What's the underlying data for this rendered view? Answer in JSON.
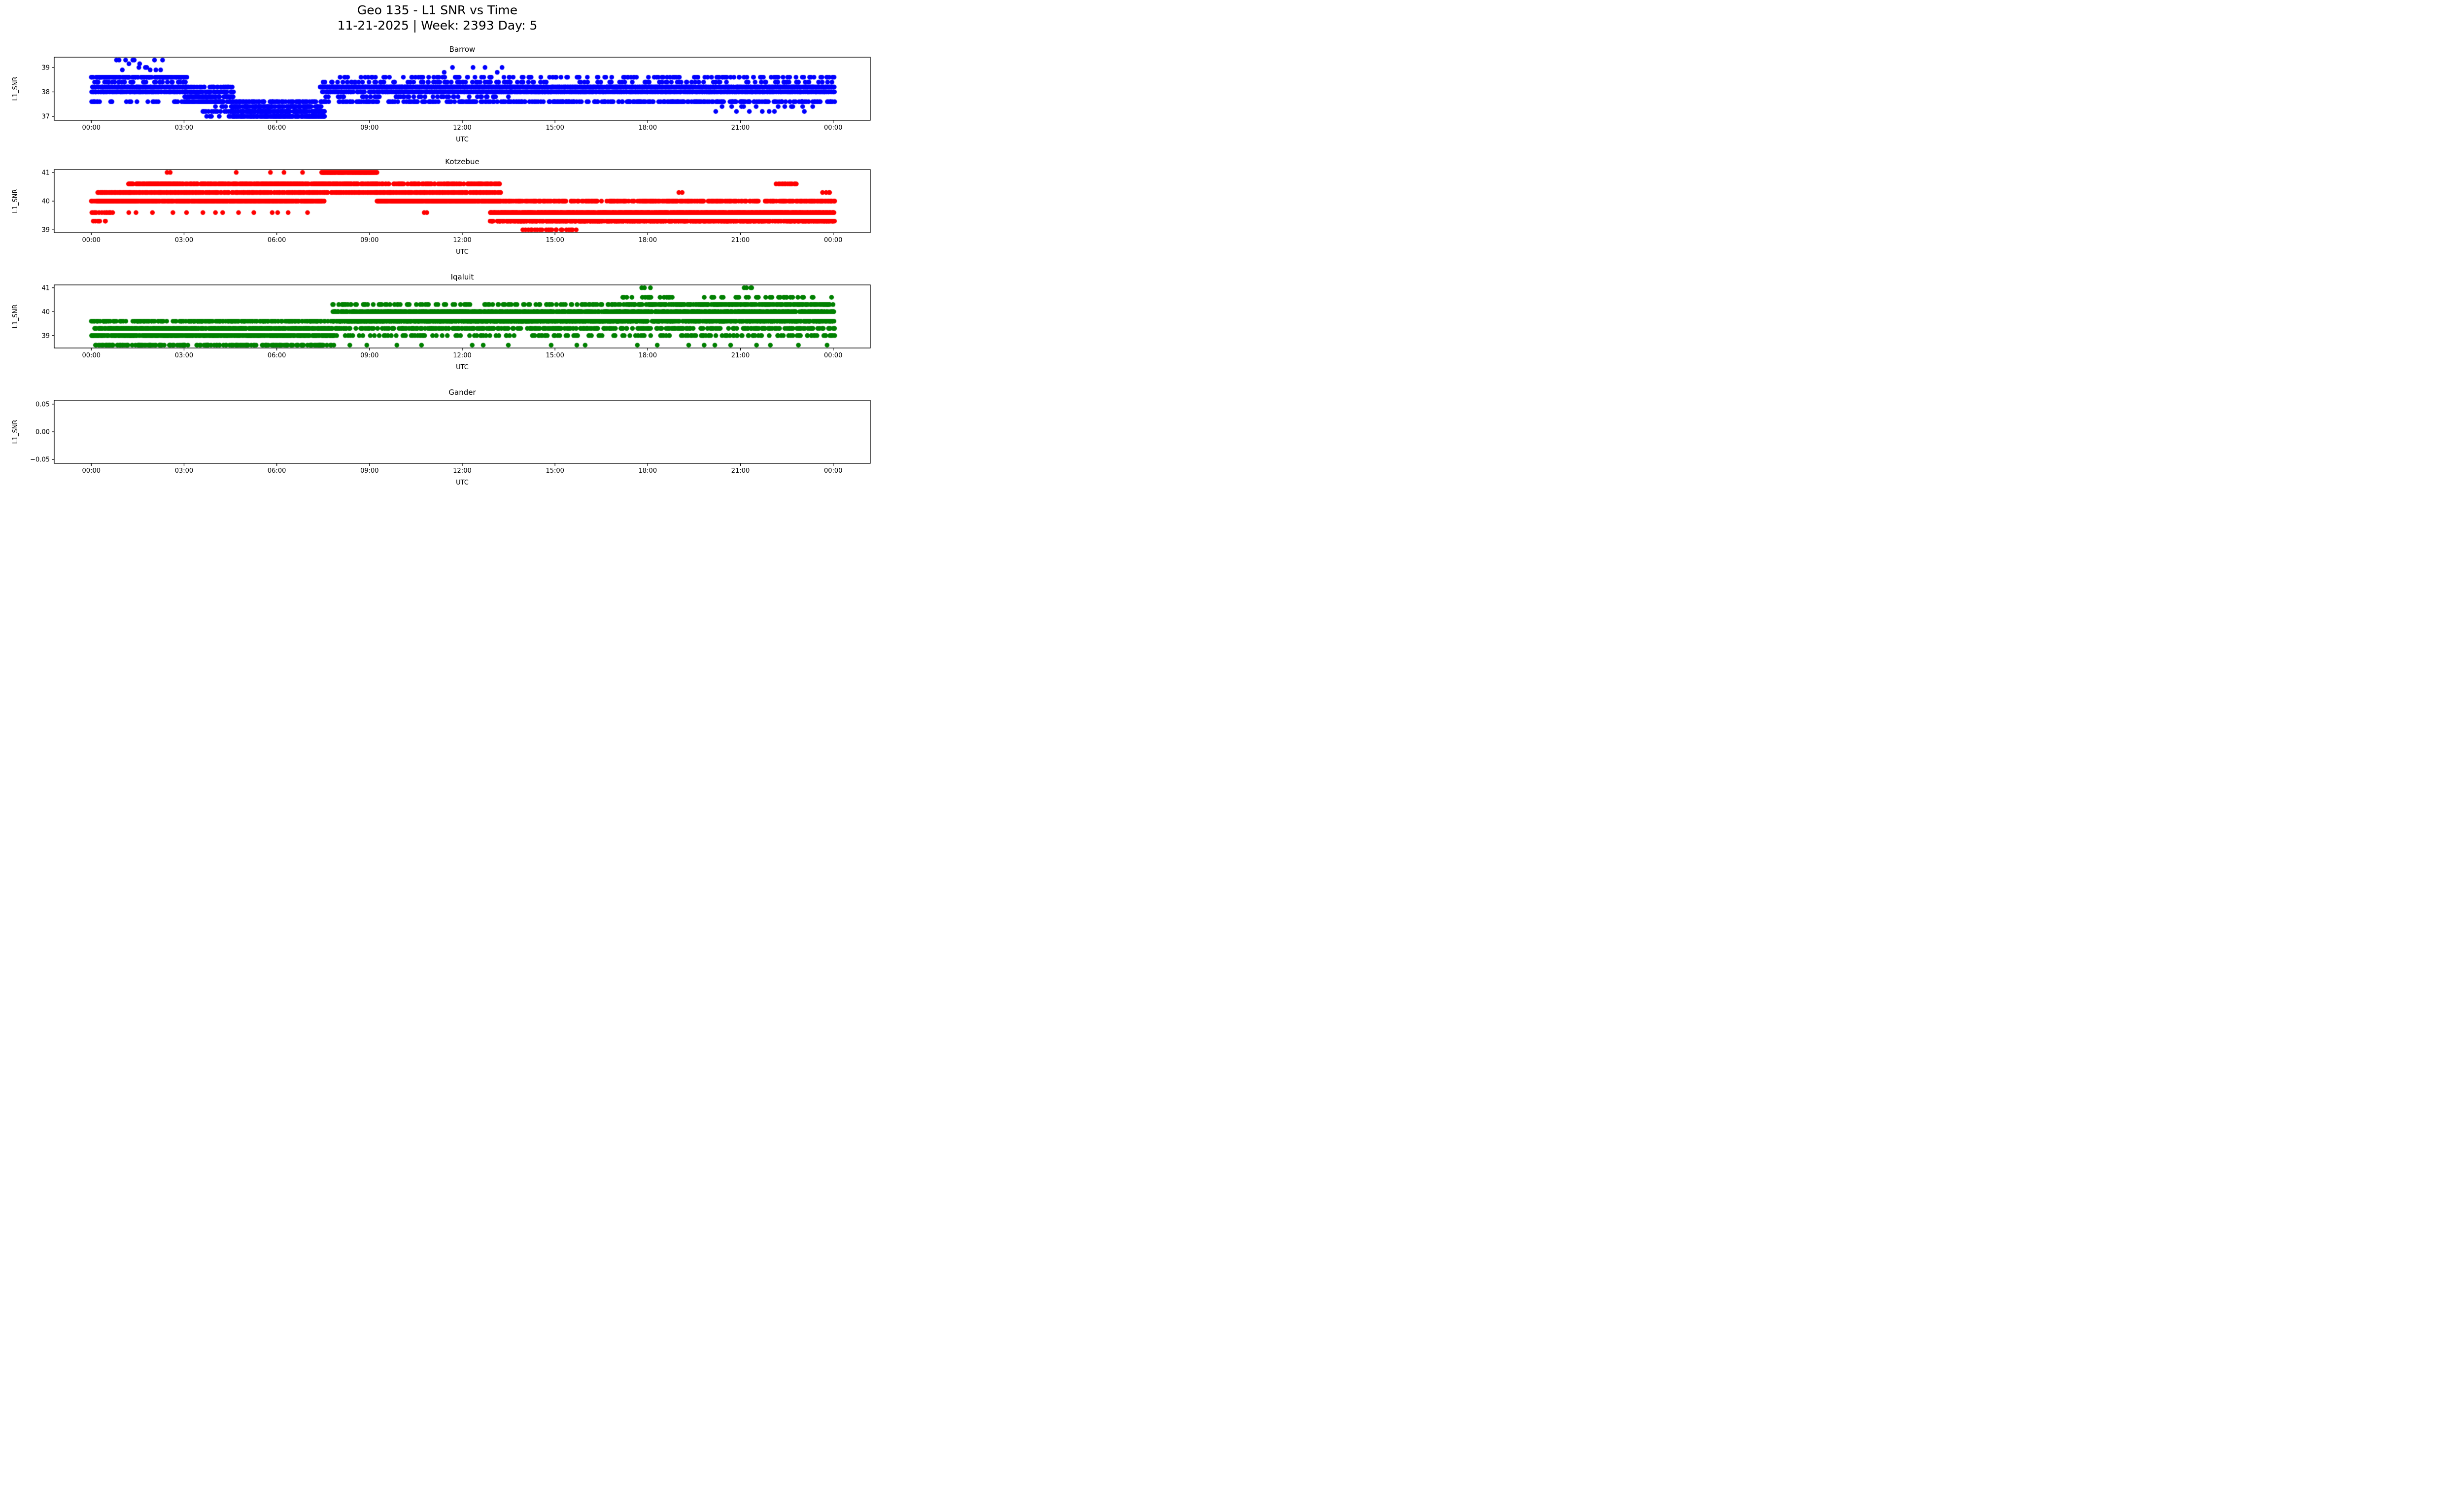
{
  "figure": {
    "title_line1": "Geo 135 - L1 SNR vs Time",
    "title_line2": "11-21-2025 | Week: 2393 Day: 5"
  },
  "chart_data": [
    {
      "type": "scatter",
      "id": "barrow",
      "title": "Barrow",
      "xlabel": "UTC",
      "ylabel": "L1_SNR",
      "color": "#0000ff",
      "x_tick_labels": [
        "00:00",
        "03:00",
        "06:00",
        "09:00",
        "12:00",
        "15:00",
        "18:00",
        "21:00",
        "00:00"
      ],
      "x_tick_hours": [
        0,
        3,
        6,
        9,
        12,
        15,
        18,
        21,
        24
      ],
      "y_tick_labels": [
        "37",
        "38",
        "39"
      ],
      "y_tick_values": [
        37,
        38,
        39
      ],
      "xlim": [
        -1.2,
        25.2
      ],
      "ylim": [
        36.84,
        39.42
      ],
      "legend": "none",
      "grid": false,
      "segments": [
        {
          "t0": 0.0,
          "t1": 3.1,
          "n": 560,
          "levels": [
            [
              38.0,
              32
            ],
            [
              38.2,
              32
            ],
            [
              38.4,
              6
            ],
            [
              38.6,
              26
            ],
            [
              37.6,
              4
            ]
          ]
        },
        {
          "t0": 0.75,
          "t1": 2.35,
          "n": 16,
          "levels": [
            [
              38.9,
              3
            ],
            [
              39.0,
              4
            ],
            [
              39.15,
              3
            ],
            [
              39.3,
              6
            ]
          ]
        },
        {
          "t0": 3.0,
          "t1": 4.6,
          "n": 240,
          "levels": [
            [
              37.6,
              35
            ],
            [
              37.8,
              30
            ],
            [
              38.0,
              18
            ],
            [
              38.2,
              17
            ]
          ]
        },
        {
          "t0": 3.6,
          "t1": 4.7,
          "n": 26,
          "levels": [
            [
              37.0,
              25
            ],
            [
              37.2,
              45
            ],
            [
              37.4,
              30
            ]
          ]
        },
        {
          "t0": 4.5,
          "t1": 7.55,
          "n": 520,
          "levels": [
            [
              37.0,
              32
            ],
            [
              37.2,
              30
            ],
            [
              37.4,
              26
            ],
            [
              37.6,
              12
            ]
          ]
        },
        {
          "t0": 7.4,
          "t1": 13.6,
          "n": 1050,
          "levels": [
            [
              37.6,
              10
            ],
            [
              37.8,
              4
            ],
            [
              38.0,
              28
            ],
            [
              38.2,
              48
            ],
            [
              38.4,
              5
            ],
            [
              38.6,
              5
            ]
          ]
        },
        {
          "t0": 11.4,
          "t1": 13.3,
          "n": 12,
          "levels": [
            [
              38.6,
              4
            ],
            [
              38.8,
              4
            ],
            [
              39.0,
              4
            ]
          ]
        },
        {
          "t0": 13.5,
          "t1": 24.05,
          "n": 1750,
          "levels": [
            [
              37.6,
              13
            ],
            [
              38.0,
              37
            ],
            [
              38.2,
              39
            ],
            [
              38.4,
              5
            ],
            [
              38.6,
              6
            ]
          ]
        },
        {
          "t0": 20.2,
          "t1": 23.4,
          "n": 18,
          "levels": [
            [
              37.2,
              8
            ],
            [
              37.4,
              10
            ]
          ]
        }
      ]
    },
    {
      "type": "scatter",
      "id": "kotzebue",
      "title": "Kotzebue",
      "xlabel": "UTC",
      "ylabel": "L1_SNR",
      "color": "#ff0000",
      "x_tick_labels": [
        "00:00",
        "03:00",
        "06:00",
        "09:00",
        "12:00",
        "15:00",
        "18:00",
        "21:00",
        "00:00"
      ],
      "x_tick_hours": [
        0,
        3,
        6,
        9,
        12,
        15,
        18,
        21,
        24
      ],
      "y_tick_labels": [
        "39",
        "40",
        "41"
      ],
      "y_tick_values": [
        39,
        40,
        41
      ],
      "xlim": [
        -1.2,
        25.2
      ],
      "ylim": [
        38.9,
        41.1
      ],
      "legend": "none",
      "grid": false,
      "segments": [
        {
          "t0": 0.0,
          "t1": 0.7,
          "n": 45,
          "levels": [
            [
              39.3,
              15
            ],
            [
              39.6,
              35
            ],
            [
              40.0,
              50
            ]
          ]
        },
        {
          "t0": 0.2,
          "t1": 1.3,
          "n": 170,
          "levels": [
            [
              40.0,
              55
            ],
            [
              40.3,
              45
            ]
          ]
        },
        {
          "t0": 1.2,
          "t1": 7.55,
          "n": 1020,
          "levels": [
            [
              40.0,
              42
            ],
            [
              40.3,
              28
            ],
            [
              40.6,
              30
            ]
          ]
        },
        {
          "t0": 1.0,
          "t1": 7.2,
          "n": 14,
          "levels": [
            [
              39.6,
              1
            ]
          ]
        },
        {
          "t0": 2.4,
          "t1": 2.6,
          "n": 2,
          "levels": [
            [
              41.0,
              1
            ]
          ]
        },
        {
          "t0": 4.6,
          "t1": 7.0,
          "n": 4,
          "levels": [
            [
              41.0,
              1
            ]
          ]
        },
        {
          "t0": 7.45,
          "t1": 9.25,
          "n": 340,
          "levels": [
            [
              41.0,
              55
            ],
            [
              40.6,
              27
            ],
            [
              40.3,
              18
            ]
          ]
        },
        {
          "t0": 9.2,
          "t1": 13.25,
          "n": 640,
          "levels": [
            [
              40.0,
              48
            ],
            [
              40.3,
              34
            ],
            [
              40.6,
              18
            ]
          ]
        },
        {
          "t0": 10.7,
          "t1": 10.95,
          "n": 2,
          "levels": [
            [
              39.6,
              1
            ]
          ]
        },
        {
          "t0": 12.9,
          "t1": 24.05,
          "n": 1850,
          "levels": [
            [
              39.3,
              33
            ],
            [
              39.6,
              49
            ],
            [
              40.0,
              18
            ]
          ]
        },
        {
          "t0": 13.9,
          "t1": 15.7,
          "n": 22,
          "levels": [
            [
              39.0,
              1
            ]
          ]
        },
        {
          "t0": 18.95,
          "t1": 19.15,
          "n": 2,
          "levels": [
            [
              40.3,
              1
            ]
          ]
        },
        {
          "t0": 22.15,
          "t1": 22.85,
          "n": 14,
          "levels": [
            [
              40.6,
              1
            ]
          ]
        },
        {
          "t0": 23.65,
          "t1": 23.95,
          "n": 4,
          "levels": [
            [
              40.3,
              1
            ]
          ]
        }
      ]
    },
    {
      "type": "scatter",
      "id": "iqaluit",
      "title": "Iqaluit",
      "xlabel": "UTC",
      "ylabel": "L1_SNR",
      "color": "#008000",
      "x_tick_labels": [
        "00:00",
        "03:00",
        "06:00",
        "09:00",
        "12:00",
        "15:00",
        "18:00",
        "21:00",
        "00:00"
      ],
      "x_tick_hours": [
        0,
        3,
        6,
        9,
        12,
        15,
        18,
        21,
        24
      ],
      "y_tick_labels": [
        "39",
        "40",
        "41"
      ],
      "y_tick_values": [
        39,
        40,
        41
      ],
      "xlim": [
        -1.2,
        25.2
      ],
      "ylim": [
        38.48,
        41.12
      ],
      "legend": "none",
      "grid": false,
      "segments": [
        {
          "t0": 0.0,
          "t1": 7.85,
          "n": 1250,
          "levels": [
            [
              38.6,
              15
            ],
            [
              39.0,
              40
            ],
            [
              39.3,
              30
            ],
            [
              39.6,
              15
            ]
          ]
        },
        {
          "t0": 7.8,
          "t1": 17.05,
          "n": 1500,
          "levels": [
            [
              39.0,
              4
            ],
            [
              39.3,
              14
            ],
            [
              39.6,
              44
            ],
            [
              40.0,
              30
            ],
            [
              40.3,
              8
            ]
          ]
        },
        {
          "t0": 8.0,
          "t1": 16.8,
          "n": 10,
          "levels": [
            [
              38.6,
              1
            ]
          ]
        },
        {
          "t0": 17.0,
          "t1": 24.05,
          "n": 1250,
          "levels": [
            [
              39.0,
              6
            ],
            [
              39.3,
              10
            ],
            [
              39.6,
              27
            ],
            [
              40.0,
              32
            ],
            [
              40.3,
              20
            ],
            [
              40.6,
              5
            ]
          ]
        },
        {
          "t0": 17.75,
          "t1": 18.15,
          "n": 3,
          "levels": [
            [
              41.0,
              1
            ]
          ]
        },
        {
          "t0": 21.1,
          "t1": 21.45,
          "n": 4,
          "levels": [
            [
              41.0,
              1
            ]
          ]
        },
        {
          "t0": 17.4,
          "t1": 23.9,
          "n": 10,
          "levels": [
            [
              38.6,
              1
            ]
          ]
        }
      ]
    },
    {
      "type": "scatter",
      "id": "gander",
      "title": "Gander",
      "xlabel": "UTC",
      "ylabel": "L1_SNR",
      "color": "#1f77b4",
      "x_tick_labels": [
        "00:00",
        "03:00",
        "06:00",
        "09:00",
        "12:00",
        "15:00",
        "18:00",
        "21:00",
        "00:00"
      ],
      "x_tick_hours": [
        0,
        3,
        6,
        9,
        12,
        15,
        18,
        21,
        24
      ],
      "y_tick_labels": [
        "−0.05",
        "0.00",
        "0.05"
      ],
      "y_tick_values": [
        -0.05,
        0.0,
        0.05
      ],
      "xlim": [
        -1.2,
        25.2
      ],
      "ylim": [
        -0.057,
        0.057
      ],
      "legend": "none",
      "grid": false,
      "segments": []
    }
  ]
}
